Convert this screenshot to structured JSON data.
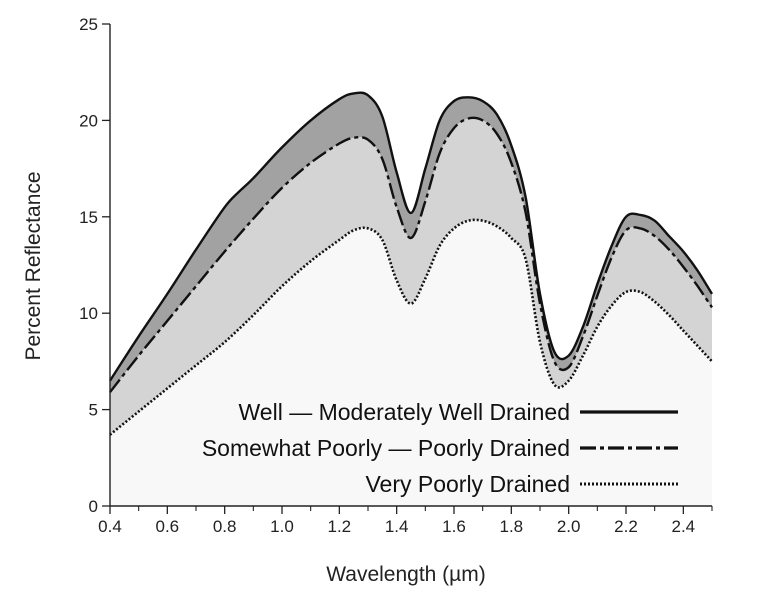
{
  "chart_data": {
    "type": "area",
    "title": "",
    "xlabel": "Wavelength (µm)",
    "ylabel": "Percent Reflectance",
    "xlim": [
      0.4,
      2.5
    ],
    "ylim": [
      0,
      25
    ],
    "x_ticks": [
      0.4,
      0.6,
      0.8,
      1.0,
      1.2,
      1.4,
      1.6,
      1.8,
      2.0,
      2.2,
      2.4
    ],
    "x_tick_labels": [
      "0.4",
      "0.6",
      "0.8",
      "1.0",
      "1.2",
      "1.4",
      "1.6",
      "1.8",
      "2.0",
      "2.2",
      "2.4"
    ],
    "y_ticks": [
      0,
      5,
      10,
      15,
      20,
      25
    ],
    "y_tick_labels": [
      "0",
      "5",
      "10",
      "15",
      "20",
      "25"
    ],
    "legend_position": "bottom-right",
    "series": [
      {
        "name": "Well — Moderately Well Drained",
        "line_style": "solid",
        "fill_color": "#a2a2a2",
        "x": [
          0.4,
          0.5,
          0.6,
          0.7,
          0.8,
          0.85,
          0.9,
          1.0,
          1.1,
          1.2,
          1.25,
          1.3,
          1.35,
          1.4,
          1.45,
          1.5,
          1.55,
          1.6,
          1.65,
          1.7,
          1.75,
          1.8,
          1.85,
          1.9,
          1.95,
          2.0,
          2.05,
          2.1,
          2.15,
          2.2,
          2.25,
          2.3,
          2.35,
          2.4,
          2.45,
          2.5
        ],
        "y": [
          6.5,
          8.8,
          11.0,
          13.3,
          15.5,
          16.3,
          17.0,
          18.6,
          20.0,
          21.1,
          21.4,
          21.3,
          20.2,
          17.3,
          15.2,
          17.5,
          20.0,
          21.0,
          21.2,
          21.0,
          20.3,
          18.7,
          16.0,
          11.0,
          8.0,
          7.8,
          9.3,
          11.5,
          13.5,
          15.0,
          15.1,
          14.8,
          14.0,
          13.2,
          12.2,
          11.0
        ]
      },
      {
        "name": "Somewhat Poorly — Poorly Drained",
        "line_style": "dash-dot",
        "fill_color": "#d4d4d4",
        "x": [
          0.4,
          0.5,
          0.6,
          0.7,
          0.8,
          0.9,
          1.0,
          1.1,
          1.2,
          1.25,
          1.3,
          1.35,
          1.4,
          1.45,
          1.5,
          1.55,
          1.6,
          1.65,
          1.7,
          1.75,
          1.8,
          1.85,
          1.9,
          1.95,
          2.0,
          2.05,
          2.1,
          2.15,
          2.2,
          2.25,
          2.3,
          2.35,
          2.4,
          2.45,
          2.5
        ],
        "y": [
          5.9,
          7.8,
          9.6,
          11.4,
          13.2,
          14.9,
          16.5,
          17.8,
          18.8,
          19.1,
          19.0,
          18.0,
          15.5,
          13.9,
          15.8,
          18.3,
          19.6,
          20.1,
          20.0,
          19.3,
          17.8,
          15.2,
          10.5,
          7.5,
          7.2,
          8.8,
          10.9,
          12.9,
          14.3,
          14.4,
          14.0,
          13.3,
          12.4,
          11.4,
          10.3
        ]
      },
      {
        "name": "Very Poorly Drained",
        "line_style": "dotted",
        "fill_color": "#f8f8f8",
        "x": [
          0.4,
          0.5,
          0.6,
          0.7,
          0.8,
          0.9,
          1.0,
          1.1,
          1.2,
          1.25,
          1.3,
          1.35,
          1.4,
          1.45,
          1.5,
          1.55,
          1.6,
          1.65,
          1.7,
          1.75,
          1.8,
          1.85,
          1.9,
          1.95,
          2.0,
          2.05,
          2.1,
          2.15,
          2.2,
          2.25,
          2.3,
          2.35,
          2.4,
          2.45,
          2.5
        ],
        "y": [
          3.7,
          4.9,
          6.1,
          7.3,
          8.5,
          9.9,
          11.4,
          12.7,
          13.8,
          14.3,
          14.4,
          13.8,
          11.7,
          10.5,
          11.8,
          13.5,
          14.4,
          14.8,
          14.8,
          14.5,
          13.9,
          12.8,
          8.5,
          6.3,
          6.5,
          7.8,
          9.3,
          10.4,
          11.1,
          11.1,
          10.6,
          9.9,
          9.1,
          8.3,
          7.5
        ]
      }
    ]
  }
}
